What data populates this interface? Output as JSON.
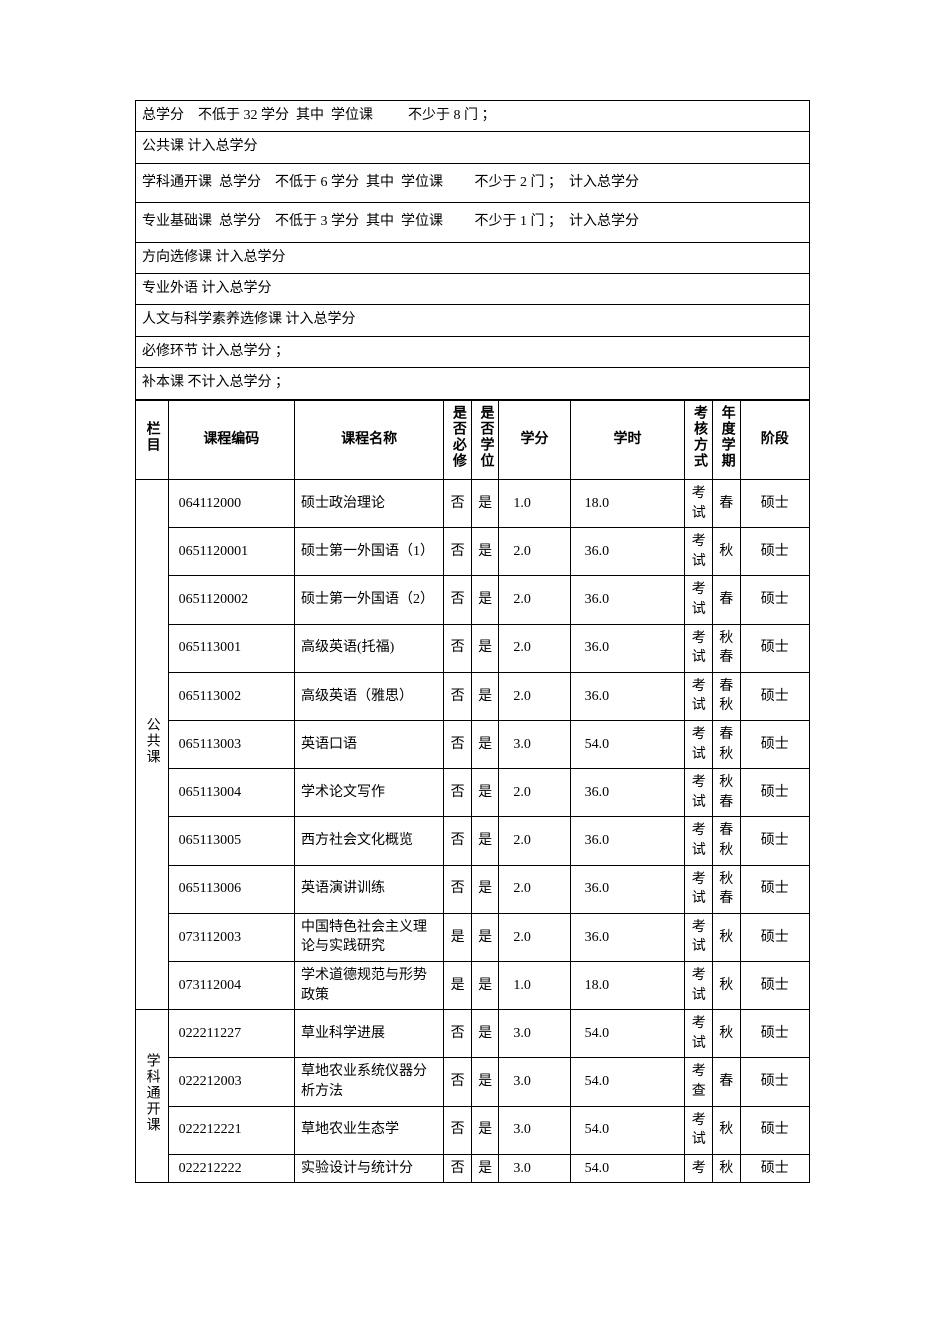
{
  "rules": [
    "总学分    不低于 32 学分  其中  学位课          不少于 8 门 ；",
    "公共课 计入总学分",
    "学科通开课  总学分    不低于 6 学分  其中  学位课         不少于 2 门 ；  计入总学分",
    "专业基础课  总学分    不低于 3 学分  其中  学位课         不少于 1 门 ；  计入总学分",
    "方向选修课 计入总学分",
    "专业外语 计入总学分",
    "人文与科学素养选修课 计入总学分",
    "必修环节 计入总学分 ；",
    "补本课 不计入总学分 ；"
  ],
  "ruleTall": [
    false,
    false,
    true,
    true,
    false,
    false,
    false,
    false,
    false
  ],
  "headers": {
    "cat": "栏目",
    "code": "课程编码",
    "name": "课程名称",
    "req": "是否必修",
    "deg": "是否学位",
    "cred": "学分",
    "hours": "学时",
    "exam": "考核方式",
    "term": "年度学期",
    "stage": "阶段"
  },
  "groups": [
    {
      "label": "公共课",
      "rows": [
        {
          "code": "064112000",
          "name": "硕士政治理论",
          "req": "否",
          "deg": "是",
          "cred": "1.0",
          "hours": "18.0",
          "exam": "考试",
          "term": "春",
          "stage": "硕士"
        },
        {
          "code": "0651120001",
          "name": "硕士第一外国语（1）",
          "req": "否",
          "deg": "是",
          "cred": "2.0",
          "hours": "36.0",
          "exam": "考试",
          "term": "秋",
          "stage": "硕士"
        },
        {
          "code": "0651120002",
          "name": "硕士第一外国语（2）",
          "req": "否",
          "deg": "是",
          "cred": "2.0",
          "hours": "36.0",
          "exam": "考试",
          "term": "春",
          "stage": "硕士"
        },
        {
          "code": "065113001",
          "name": "高级英语(托福)",
          "req": "否",
          "deg": "是",
          "cred": "2.0",
          "hours": "36.0",
          "exam": "考试",
          "term": "秋春",
          "stage": "硕士"
        },
        {
          "code": "065113002",
          "name": "高级英语（雅思）",
          "req": "否",
          "deg": "是",
          "cred": "2.0",
          "hours": "36.0",
          "exam": "考试",
          "term": "春秋",
          "stage": "硕士"
        },
        {
          "code": "065113003",
          "name": "英语口语",
          "req": "否",
          "deg": "是",
          "cred": "3.0",
          "hours": "54.0",
          "exam": "考试",
          "term": "春秋",
          "stage": "硕士"
        },
        {
          "code": "065113004",
          "name": "学术论文写作",
          "req": "否",
          "deg": "是",
          "cred": "2.0",
          "hours": "36.0",
          "exam": "考试",
          "term": "秋春",
          "stage": "硕士"
        },
        {
          "code": "065113005",
          "name": "西方社会文化概览",
          "req": "否",
          "deg": "是",
          "cred": "2.0",
          "hours": "36.0",
          "exam": "考试",
          "term": "春秋",
          "stage": "硕士"
        },
        {
          "code": "065113006",
          "name": "英语演讲训练",
          "req": "否",
          "deg": "是",
          "cred": "2.0",
          "hours": "36.0",
          "exam": "考试",
          "term": "秋春",
          "stage": "硕士"
        },
        {
          "code": "073112003",
          "name": "中国特色社会主义理论与实践研究",
          "req": "是",
          "deg": "是",
          "cred": "2.0",
          "hours": "36.0",
          "exam": "考试",
          "term": "秋",
          "stage": "硕士"
        },
        {
          "code": "073112004",
          "name": "学术道德规范与形势政策",
          "req": "是",
          "deg": "是",
          "cred": "1.0",
          "hours": "18.0",
          "exam": "考试",
          "term": "秋",
          "stage": "硕士"
        }
      ]
    },
    {
      "label": "学科通开课",
      "rows": [
        {
          "code": "022211227",
          "name": "草业科学进展",
          "req": "否",
          "deg": "是",
          "cred": "3.0",
          "hours": "54.0",
          "exam": "考试",
          "term": "秋",
          "stage": "硕士"
        },
        {
          "code": "022212003",
          "name": "草地农业系统仪器分析方法",
          "req": "否",
          "deg": "是",
          "cred": "3.0",
          "hours": "54.0",
          "exam": "考查",
          "term": "春",
          "stage": "硕士"
        },
        {
          "code": "022212221",
          "name": "草地农业生态学",
          "req": "否",
          "deg": "是",
          "cred": "3.0",
          "hours": "54.0",
          "exam": "考试",
          "term": "秋",
          "stage": "硕士"
        },
        {
          "code": "022212222",
          "name": "实验设计与统计分",
          "req": "否",
          "deg": "是",
          "cred": "3.0",
          "hours": "54.0",
          "exam": "考",
          "term": "秋",
          "stage": "硕士"
        }
      ]
    }
  ]
}
